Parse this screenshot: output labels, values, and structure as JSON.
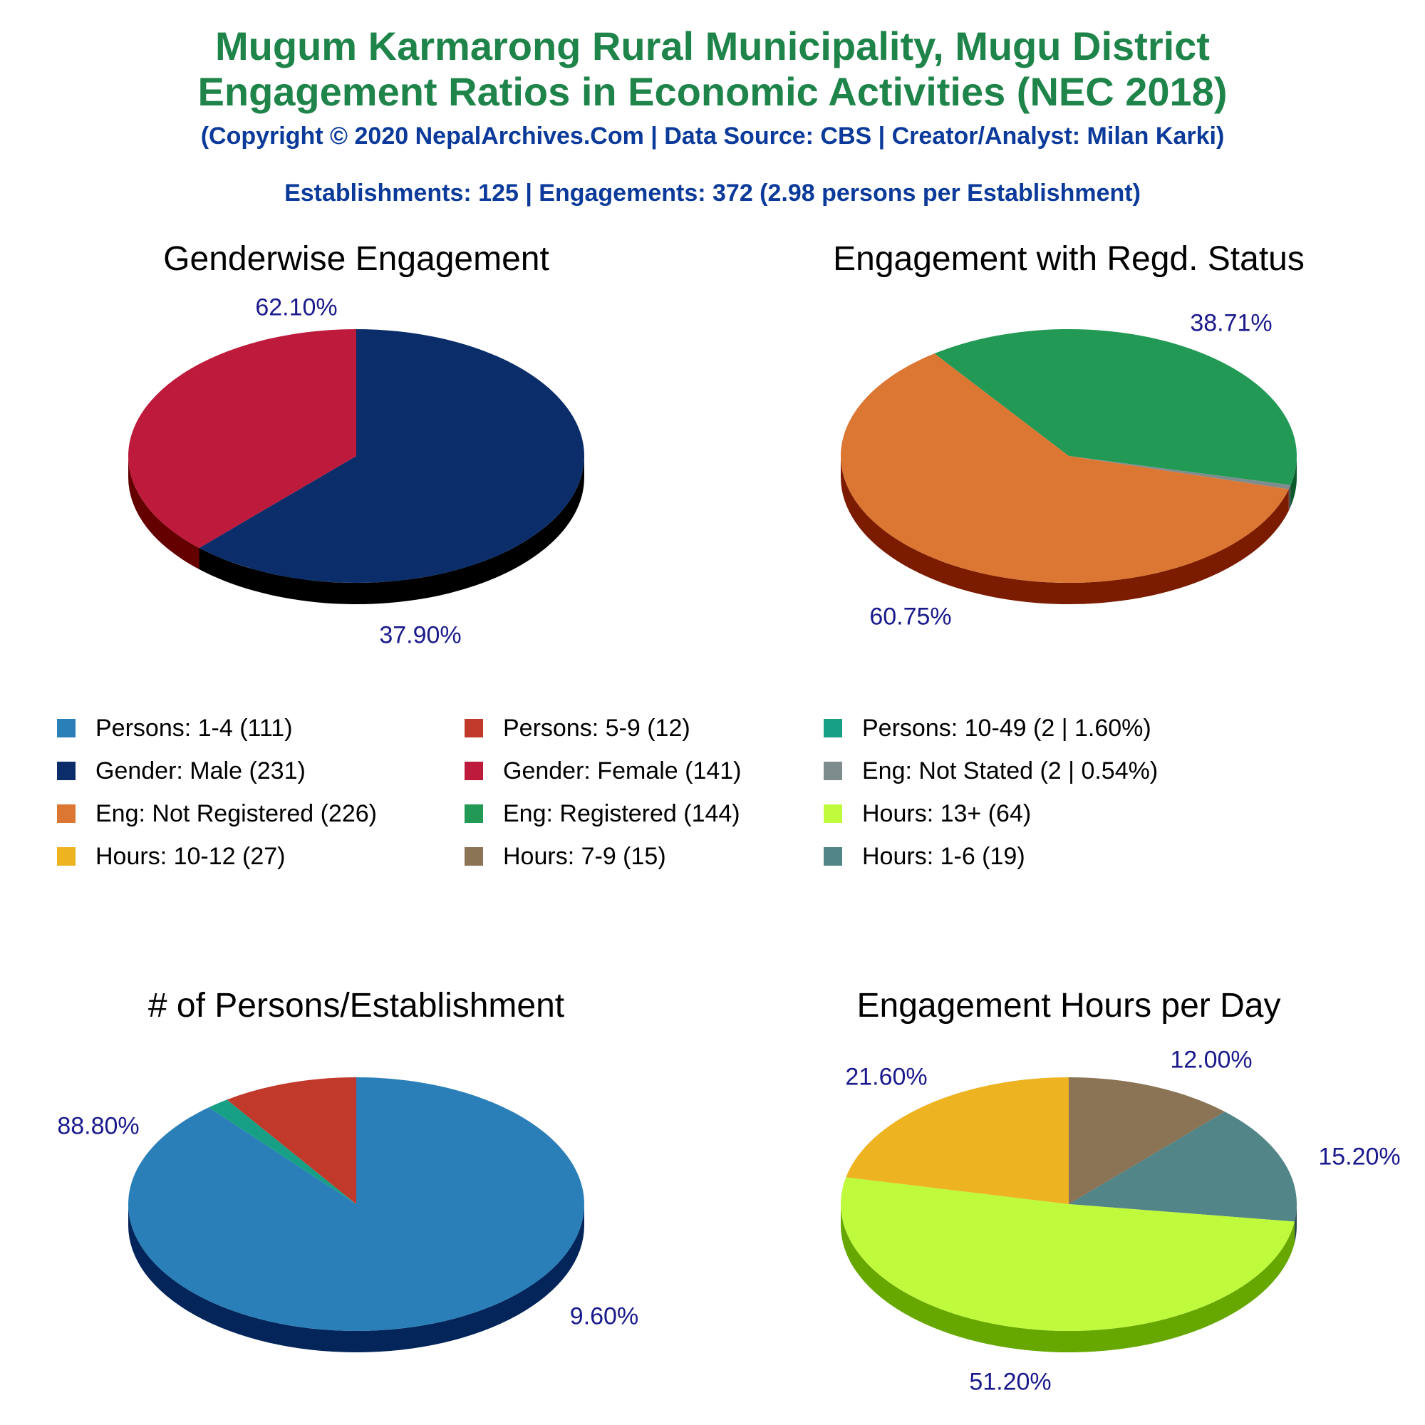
{
  "header": {
    "title_line1": "Mugum Karmarong Rural Municipality, Mugu District",
    "title_line2": "Engagement Ratios in Economic Activities (NEC 2018)",
    "copyright": "(Copyright © 2020 NepalArchives.Com | Data Source: CBS | Creator/Analyst: Milan Karki)",
    "summary": "Establishments: 125 | Engagements: 372 (2.98 persons per Establishment)"
  },
  "legend": [
    {
      "label": "Persons: 1-4 (111)",
      "color": "#2a7fb8"
    },
    {
      "label": "Persons: 5-9 (12)",
      "color": "#c0392b"
    },
    {
      "label": "Persons: 10-49 (2 | 1.60%)",
      "color": "#17a085"
    },
    {
      "label": "Gender: Male (231)",
      "color": "#0b2d69"
    },
    {
      "label": "Gender: Female (141)",
      "color": "#be1a3c"
    },
    {
      "label": "Eng: Not Stated (2 | 0.54%)",
      "color": "#7f8c8d"
    },
    {
      "label": "Eng: Not Registered (226)",
      "color": "#dc7633"
    },
    {
      "label": "Eng: Registered (144)",
      "color": "#229954"
    },
    {
      "label": "Hours: 13+ (64)",
      "color": "#c0fa3c"
    },
    {
      "label": "Hours: 10-12 (27)",
      "color": "#edb321"
    },
    {
      "label": "Hours: 7-9 (15)",
      "color": "#8b7355"
    },
    {
      "label": "Hours: 1-6 (19)",
      "color": "#528588"
    }
  ],
  "chart_data": [
    {
      "type": "pie",
      "title": "Genderwise Engagement",
      "slices": [
        {
          "name": "Gender: Male",
          "value": 231,
          "label": "62.10%",
          "color": "#0b2d69",
          "side": "#000000"
        },
        {
          "name": "Gender: Female",
          "value": 141,
          "label": "37.90%",
          "color": "#be1a3c",
          "side": "#640000"
        }
      ]
    },
    {
      "type": "pie",
      "title": "Engagement with Regd. Status",
      "slices": [
        {
          "name": "Eng: Registered",
          "value": 144,
          "label": "38.71%",
          "color": "#229954",
          "side": "#0c5a2c"
        },
        {
          "name": "Eng: Not Stated",
          "value": 2,
          "label": "",
          "color": "#7f8c8d",
          "side": "#4a5556"
        },
        {
          "name": "Eng: Not Registered",
          "value": 226,
          "label": "60.75%",
          "color": "#dc7633",
          "side": "#7b1c00"
        }
      ]
    },
    {
      "type": "pie",
      "title": "# of Persons/Establishment",
      "slices": [
        {
          "name": "Persons: 1-4",
          "value": 111,
          "label": "88.80%",
          "color": "#2a7fb8",
          "side": "#03255a"
        },
        {
          "name": "Persons: 10-49",
          "value": 2,
          "label": "",
          "color": "#17a085",
          "side": "#0a5a4a"
        },
        {
          "name": "Persons: 5-9",
          "value": 12,
          "label": "9.60%",
          "color": "#c0392b",
          "side": "#6a0000"
        }
      ]
    },
    {
      "type": "pie",
      "title": "Engagement Hours per Day",
      "slices": [
        {
          "name": "Hours: 7-9",
          "value": 15,
          "label": "12.00%",
          "color": "#8b7355",
          "side": "#4e3f2c"
        },
        {
          "name": "Hours: 1-6",
          "value": 19,
          "label": "15.20%",
          "color": "#528588",
          "side": "#2b4a4c"
        },
        {
          "name": "Hours: 13+",
          "value": 64,
          "label": "51.20%",
          "color": "#c0fa3c",
          "side": "#66a800"
        },
        {
          "name": "Hours: 10-12",
          "value": 27,
          "label": "21.60%",
          "color": "#edb321",
          "side": "#8a6200"
        }
      ]
    }
  ]
}
